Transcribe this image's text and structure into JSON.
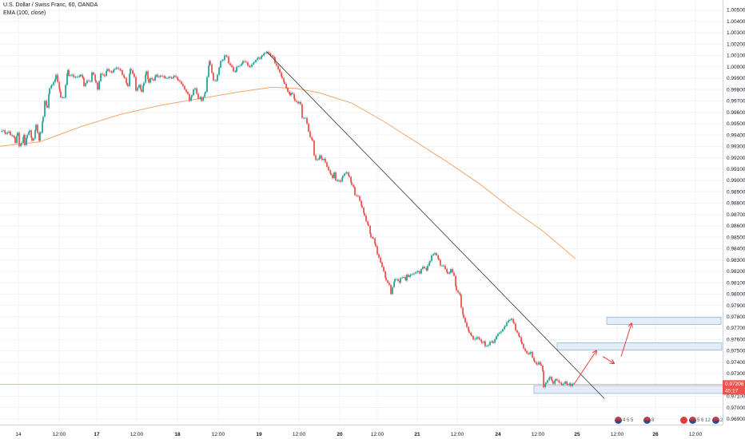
{
  "legend": {
    "title": "U.S. Dollar / Swiss Franc, 60, OANDA",
    "indicator": "EMA (100, close)"
  },
  "price_label": {
    "price": "0.97206",
    "countdown": "45:17"
  },
  "events": [
    {
      "name": "us-events-badge-1",
      "icon": "us-flag-icon",
      "text": "4 5 5"
    },
    {
      "name": "us-events-badge-2",
      "icon": "us-flag-icon",
      "text": "8"
    },
    {
      "name": "ch-events-badge",
      "icon": "swiss-flag-icon",
      "text": ""
    },
    {
      "name": "us-events-badge-3",
      "icon": "us-flag-icon",
      "text": "5 6 12"
    },
    {
      "name": "us-events-badge-4",
      "icon": "us-flag-icon",
      "text": "2"
    }
  ],
  "colors": {
    "up": "#26a69a",
    "down": "#ef5350",
    "ema": "#f7a66b",
    "trendline": "#333333",
    "zone_fill": "#e3edf8",
    "zone_border": "#90b4d8",
    "arrow": "#ef3b3b",
    "price_line": "#ef5350",
    "grid": "#f0f3fa"
  },
  "chart_data": {
    "type": "candlestick",
    "symbol": "U.S. Dollar / Swiss Franc",
    "interval": "60",
    "source": "OANDA",
    "y_ticks": [
      1.005,
      1.004,
      1.003,
      1.002,
      1.001,
      1.0,
      0.999,
      0.998,
      0.997,
      0.996,
      0.995,
      0.994,
      0.993,
      0.992,
      0.991,
      0.99,
      0.989,
      0.988,
      0.987,
      0.986,
      0.985,
      0.984,
      0.983,
      0.982,
      0.981,
      0.98,
      0.979,
      0.978,
      0.977,
      0.976,
      0.975,
      0.974,
      0.973,
      0.971,
      0.97,
      0.969
    ],
    "y_tick_labels": [
      "1.00500",
      "1.00400",
      "1.00300",
      "1.00200",
      "1.00100",
      "1.00000",
      "0.99900",
      "0.99800",
      "0.99700",
      "0.99600",
      "0.99500",
      "0.99400",
      "0.99300",
      "0.99200",
      "0.99100",
      "0.99000",
      "0.98900",
      "0.98800",
      "0.98700",
      "0.98600",
      "0.98500",
      "0.98400",
      "0.98300",
      "0.98200",
      "0.98100",
      "0.98000",
      "0.97900",
      "0.97800",
      "0.97700",
      "0.97600",
      "0.97500",
      "0.97400",
      "0.97300",
      "0.97100",
      "0.97000",
      "0.96900"
    ],
    "x_ticks": [
      "14",
      "12:00",
      "17",
      "12:00",
      "18",
      "12:00",
      "19",
      "12:00",
      "20",
      "12:00",
      "21",
      "12:00",
      "24",
      "12:00",
      "25",
      "12:00",
      "26",
      "12:00"
    ],
    "x_ticks_bold": [
      "17",
      "18",
      "19",
      "20",
      "21",
      "24",
      "25",
      "26"
    ],
    "ylim": [
      0.9685,
      1.0056
    ],
    "current_price": 0.97206,
    "close_path": [
      [
        0,
        0.9943
      ],
      [
        4,
        0.9944
      ],
      [
        7,
        0.9941
      ],
      [
        11,
        0.9943
      ],
      [
        13,
        0.994
      ],
      [
        18,
        0.9938
      ],
      [
        19,
        0.9933
      ],
      [
        22,
        0.9942
      ],
      [
        24,
        0.993
      ],
      [
        27,
        0.9933
      ],
      [
        30,
        0.994
      ],
      [
        31,
        0.9931
      ],
      [
        34,
        0.994
      ],
      [
        37,
        0.9944
      ],
      [
        40,
        0.9935
      ],
      [
        42,
        0.9937
      ],
      [
        44,
        0.9944
      ],
      [
        45,
        0.9949
      ],
      [
        49,
        0.9935
      ],
      [
        50,
        0.9942
      ],
      [
        51,
        0.9942
      ],
      [
        54,
        0.9956
      ],
      [
        56,
        0.997
      ],
      [
        59,
        0.9964
      ],
      [
        62,
        0.9981
      ],
      [
        65,
        0.9984
      ],
      [
        69,
        0.9989
      ],
      [
        70,
        0.9993
      ],
      [
        75,
        0.9978
      ],
      [
        76,
        0.9973
      ],
      [
        80,
        0.9973
      ],
      [
        84,
        0.9994
      ],
      [
        85,
        0.9997
      ],
      [
        86,
        0.9992
      ],
      [
        90,
        0.9993
      ],
      [
        92,
        0.9991
      ],
      [
        95,
        0.9991
      ],
      [
        100,
        0.9992
      ],
      [
        101,
        0.9993
      ],
      [
        104,
        0.999
      ],
      [
        105,
        0.9983
      ],
      [
        109,
        0.9988
      ],
      [
        113,
        0.9987
      ],
      [
        115,
        0.9995
      ],
      [
        117,
        0.9993
      ],
      [
        120,
        0.9986
      ],
      [
        122,
        0.998
      ],
      [
        126,
        0.9994
      ],
      [
        131,
        0.9992
      ],
      [
        134,
        0.9998
      ],
      [
        137,
        0.9996
      ],
      [
        140,
        0.9995
      ],
      [
        143,
        0.9998
      ],
      [
        146,
        0.9999
      ],
      [
        151,
        0.9997
      ],
      [
        153,
        0.9993
      ],
      [
        156,
        0.999
      ],
      [
        159,
        0.9984
      ],
      [
        160,
        0.9983
      ],
      [
        163,
        0.9998
      ],
      [
        164,
        0.9997
      ],
      [
        168,
        0.9991
      ],
      [
        170,
        0.9979
      ],
      [
        174,
        0.9984
      ],
      [
        176,
        0.998
      ],
      [
        177,
        0.9978
      ],
      [
        180,
        0.9986
      ],
      [
        183,
        0.9996
      ],
      [
        186,
        0.9986
      ],
      [
        188,
        0.999
      ],
      [
        192,
        0.9988
      ],
      [
        194,
        0.9991
      ],
      [
        195,
        0.9993
      ],
      [
        198,
        0.9991
      ],
      [
        201,
        0.9992
      ],
      [
        206,
        0.9991
      ],
      [
        207,
        0.999
      ],
      [
        209,
        0.999
      ],
      [
        212,
        0.9991
      ],
      [
        215,
        0.999
      ],
      [
        218,
        0.9992
      ],
      [
        220,
        0.9991
      ],
      [
        223,
        0.9988
      ],
      [
        225,
        0.9987
      ],
      [
        229,
        0.9983
      ],
      [
        231,
        0.998
      ],
      [
        235,
        0.9976
      ],
      [
        237,
        0.997
      ],
      [
        240,
        0.9975
      ],
      [
        242,
        0.998
      ],
      [
        244,
        0.9981
      ],
      [
        248,
        0.9972
      ],
      [
        251,
        0.9973
      ],
      [
        252,
        0.997
      ],
      [
        257,
        0.9978
      ],
      [
        259,
        0.9991
      ],
      [
        262,
        1.0005
      ],
      [
        263,
        1.0002
      ],
      [
        267,
        0.9988
      ],
      [
        271,
        0.9988
      ],
      [
        272,
        0.9993
      ],
      [
        276,
        1.0005
      ],
      [
        279,
        1.0006
      ],
      [
        281,
        1.001
      ],
      [
        284,
        1.0009
      ],
      [
        286,
        1.0003
      ],
      [
        290,
        1.0
      ],
      [
        292,
        0.9996
      ],
      [
        295,
        0.9996
      ],
      [
        296,
        1.0
      ],
      [
        300,
        1.0001
      ],
      [
        303,
        1.0003
      ],
      [
        304,
        1.0005
      ],
      [
        308,
        1.0004
      ],
      [
        310,
        1.0001
      ],
      [
        313,
        1.0
      ],
      [
        315,
        1.0002
      ],
      [
        318,
        1.0004
      ],
      [
        320,
        1.0006
      ],
      [
        323,
        1.0008
      ],
      [
        325,
        1.0007
      ],
      [
        328,
        1.001
      ],
      [
        331,
        1.0012
      ],
      [
        334,
        1.0013
      ],
      [
        336,
        1.0012
      ],
      [
        339,
        1.001
      ],
      [
        343,
        1.0008
      ],
      [
        344,
        1.0003
      ],
      [
        346,
        1.0001
      ],
      [
        350,
        0.9995
      ],
      [
        353,
        0.999
      ],
      [
        356,
        0.9985
      ],
      [
        360,
        0.9978
      ],
      [
        363,
        0.9975
      ],
      [
        364,
        0.9977
      ],
      [
        366,
        0.9976
      ],
      [
        369,
        0.997
      ],
      [
        373,
        0.9968
      ],
      [
        374,
        0.9969
      ],
      [
        376,
        0.9967
      ],
      [
        378,
        0.9955
      ],
      [
        382,
        0.9955
      ],
      [
        384,
        0.995
      ],
      [
        386,
        0.9943
      ],
      [
        388,
        0.9938
      ],
      [
        391,
        0.9935
      ],
      [
        393,
        0.9922
      ],
      [
        395,
        0.9918
      ],
      [
        399,
        0.9919
      ],
      [
        400,
        0.9922
      ],
      [
        403,
        0.9918
      ],
      [
        405,
        0.9919
      ],
      [
        407,
        0.9916
      ],
      [
        409,
        0.9912
      ],
      [
        414,
        0.9905
      ],
      [
        416,
        0.9902
      ],
      [
        418,
        0.9907
      ],
      [
        420,
        0.99
      ],
      [
        423,
        0.99
      ],
      [
        426,
        0.9899
      ],
      [
        429,
        0.9904
      ],
      [
        431,
        0.9906
      ],
      [
        434,
        0.9907
      ],
      [
        437,
        0.9903
      ],
      [
        440,
        0.9896
      ],
      [
        443,
        0.9894
      ],
      [
        444,
        0.9887
      ],
      [
        448,
        0.9886
      ],
      [
        450,
        0.9882
      ],
      [
        453,
        0.9876
      ],
      [
        456,
        0.9869
      ],
      [
        458,
        0.9864
      ],
      [
        461,
        0.986
      ],
      [
        464,
        0.985
      ],
      [
        467,
        0.9849
      ],
      [
        470,
        0.9842
      ],
      [
        472,
        0.9835
      ],
      [
        474,
        0.9832
      ],
      [
        478,
        0.9824
      ],
      [
        480,
        0.982
      ],
      [
        483,
        0.9812
      ],
      [
        487,
        0.9808
      ],
      [
        489,
        0.98
      ],
      [
        491,
        0.9806
      ],
      [
        494,
        0.9813
      ],
      [
        496,
        0.9813
      ],
      [
        500,
        0.981
      ],
      [
        501,
        0.9814
      ],
      [
        505,
        0.9815
      ],
      [
        508,
        0.9812
      ],
      [
        509,
        0.9817
      ],
      [
        511,
        0.9815
      ],
      [
        514,
        0.9817
      ],
      [
        518,
        0.9818
      ],
      [
        520,
        0.9819
      ],
      [
        523,
        0.982
      ],
      [
        525,
        0.9818
      ],
      [
        527,
        0.9822
      ],
      [
        529,
        0.9824
      ],
      [
        534,
        0.9821
      ],
      [
        535,
        0.9825
      ],
      [
        538,
        0.9829
      ],
      [
        540,
        0.9834
      ],
      [
        544,
        0.9836
      ],
      [
        546,
        0.9834
      ],
      [
        549,
        0.983
      ],
      [
        551,
        0.9825
      ],
      [
        555,
        0.9825
      ],
      [
        557,
        0.9822
      ],
      [
        560,
        0.9818
      ],
      [
        563,
        0.9819
      ],
      [
        564,
        0.9822
      ],
      [
        568,
        0.9816
      ],
      [
        570,
        0.9807
      ],
      [
        571,
        0.9803
      ],
      [
        576,
        0.9799
      ],
      [
        577,
        0.9788
      ],
      [
        580,
        0.9779
      ],
      [
        582,
        0.9775
      ],
      [
        584,
        0.9771
      ],
      [
        587,
        0.9766
      ],
      [
        590,
        0.9763
      ],
      [
        592,
        0.976
      ],
      [
        596,
        0.9761
      ],
      [
        597,
        0.9762
      ],
      [
        600,
        0.976
      ],
      [
        603,
        0.9757
      ],
      [
        606,
        0.9758
      ],
      [
        607,
        0.9754
      ],
      [
        611,
        0.9755
      ],
      [
        613,
        0.9758
      ],
      [
        616,
        0.9758
      ],
      [
        617,
        0.9757
      ],
      [
        621,
        0.9763
      ],
      [
        623,
        0.9765
      ],
      [
        627,
        0.9767
      ],
      [
        629,
        0.9769
      ],
      [
        632,
        0.9772
      ],
      [
        634,
        0.9775
      ],
      [
        637,
        0.9777
      ],
      [
        640,
        0.9778
      ],
      [
        643,
        0.9774
      ],
      [
        645,
        0.9768
      ],
      [
        647,
        0.9766
      ],
      [
        650,
        0.9762
      ],
      [
        653,
        0.9756
      ],
      [
        655,
        0.9752
      ],
      [
        659,
        0.9748
      ],
      [
        661,
        0.9747
      ],
      [
        664,
        0.9749
      ],
      [
        666,
        0.9744
      ],
      [
        669,
        0.974
      ],
      [
        672,
        0.9738
      ],
      [
        674,
        0.974
      ],
      [
        677,
        0.9737
      ],
      [
        679,
        0.9732
      ],
      [
        680,
        0.9718
      ],
      [
        683,
        0.9722
      ],
      [
        685,
        0.9724
      ],
      [
        688,
        0.9727
      ],
      [
        691,
        0.9723
      ],
      [
        692,
        0.9721
      ],
      [
        695,
        0.9725
      ],
      [
        697,
        0.9724
      ],
      [
        700,
        0.9722
      ],
      [
        703,
        0.972
      ],
      [
        705,
        0.9721
      ],
      [
        707,
        0.9723
      ],
      [
        710,
        0.972
      ],
      [
        713,
        0.9721
      ],
      [
        714,
        0.9719
      ],
      [
        717,
        0.9721
      ]
    ],
    "ema_path": [
      [
        0,
        0.993
      ],
      [
        50,
        0.9934
      ],
      [
        100,
        0.9947
      ],
      [
        150,
        0.9958
      ],
      [
        200,
        0.9966
      ],
      [
        250,
        0.9972
      ],
      [
        300,
        0.9978
      ],
      [
        340,
        0.9982
      ],
      [
        370,
        0.9981
      ],
      [
        400,
        0.9977
      ],
      [
        440,
        0.9968
      ],
      [
        480,
        0.9952
      ],
      [
        520,
        0.9934
      ],
      [
        560,
        0.9916
      ],
      [
        600,
        0.9897
      ],
      [
        640,
        0.9875
      ],
      [
        680,
        0.9855
      ],
      [
        720,
        0.9831
      ]
    ],
    "trendline": [
      [
        334,
        1.0013
      ],
      [
        756,
        0.9708
      ]
    ],
    "zones": [
      {
        "name": "support-zone",
        "x1": 668,
        "x2": 912,
        "y1": 0.97194,
        "y2": 0.97125
      },
      {
        "name": "resistance-zone-1",
        "x1": 697,
        "x2": 903,
        "y1": 0.9757,
        "y2": 0.97508
      },
      {
        "name": "resistance-zone-2",
        "x1": 759,
        "x2": 902,
        "y1": 0.97794,
        "y2": 0.97732
      }
    ],
    "projection_arrows": [
      [
        [
          718,
          0.97205
        ],
        [
          746,
          0.975
        ]
      ],
      [
        [
          754,
          0.9745
        ],
        [
          768,
          0.9739
        ]
      ],
      [
        [
          777,
          0.9745
        ],
        [
          790,
          0.9774
        ]
      ]
    ]
  }
}
